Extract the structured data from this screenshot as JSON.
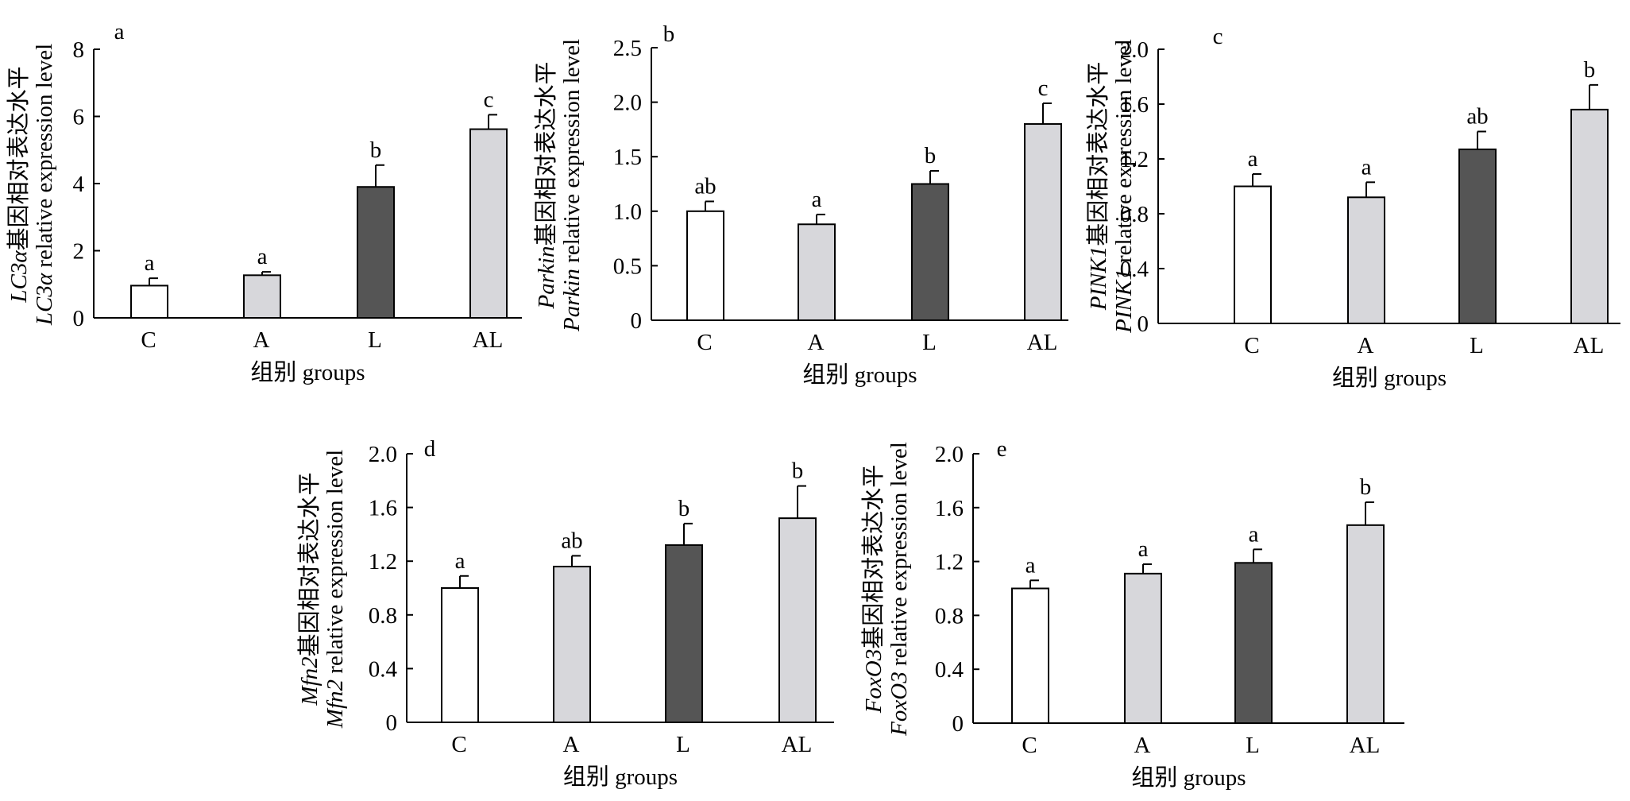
{
  "colors": {
    "C": "#ffffff",
    "A": "#d7d7db",
    "L": "#555555",
    "AL": "#d7d7db",
    "axis": "#000000"
  },
  "chart_data": [
    {
      "panel": "a",
      "type": "bar",
      "categories": [
        "C",
        "A",
        "L",
        "AL"
      ],
      "values": [
        0.96,
        1.27,
        3.9,
        5.62
      ],
      "errors": [
        0.22,
        0.1,
        0.65,
        0.43
      ],
      "significance": [
        "a",
        "a",
        "b",
        "c"
      ],
      "ylim": [
        0,
        8
      ],
      "yticks": [
        "0",
        "2",
        "4",
        "6",
        "8"
      ],
      "xlabel": "组别 groups",
      "ylabel_gene": "LC3α",
      "ylabel_line1_suffix": "基因相对表达水平",
      "ylabel_line2_suffix": " relative expression level"
    },
    {
      "panel": "b",
      "type": "bar",
      "categories": [
        "C",
        "A",
        "L",
        "AL"
      ],
      "values": [
        1.0,
        0.88,
        1.25,
        1.8
      ],
      "errors": [
        0.09,
        0.09,
        0.12,
        0.19
      ],
      "significance": [
        "ab",
        "a",
        "b",
        "c"
      ],
      "ylim": [
        0,
        2.5
      ],
      "yticks": [
        "0",
        "0.5",
        "1.0",
        "1.5",
        "2.0",
        "2.5"
      ],
      "xlabel": "组别 groups",
      "ylabel_gene": "Parkin",
      "ylabel_line1_suffix": "基因相对表达水平",
      "ylabel_line2_suffix": " relative expression level"
    },
    {
      "panel": "c",
      "type": "bar",
      "categories": [
        "C",
        "A",
        "L",
        "AL"
      ],
      "values": [
        1.0,
        0.92,
        1.27,
        1.56
      ],
      "errors": [
        0.09,
        0.11,
        0.13,
        0.18
      ],
      "significance": [
        "a",
        "a",
        "ab",
        "b"
      ],
      "ylim": [
        0,
        2.0
      ],
      "yticks": [
        "0",
        "0.4",
        "0.8",
        "1.2",
        "1.6",
        "2.0"
      ],
      "xlabel": "组别 groups",
      "ylabel_gene": "PINK1",
      "ylabel_line1_suffix": "基因相对表达水平",
      "ylabel_line2_suffix": " relative expression level"
    },
    {
      "panel": "d",
      "type": "bar",
      "categories": [
        "C",
        "A",
        "L",
        "AL"
      ],
      "values": [
        1.0,
        1.16,
        1.32,
        1.52
      ],
      "errors": [
        0.09,
        0.08,
        0.16,
        0.24
      ],
      "significance": [
        "a",
        "ab",
        "b",
        "b"
      ],
      "ylim": [
        0,
        2.0
      ],
      "yticks": [
        "0",
        "0.4",
        "0.8",
        "1.2",
        "1.6",
        "2.0"
      ],
      "xlabel": "组别 groups",
      "ylabel_gene": "Mfn2",
      "ylabel_line1_suffix": "基因相对表达水平",
      "ylabel_line2_suffix": " relative expression level"
    },
    {
      "panel": "e",
      "type": "bar",
      "categories": [
        "C",
        "A",
        "L",
        "AL"
      ],
      "values": [
        1.0,
        1.11,
        1.19,
        1.47
      ],
      "errors": [
        0.06,
        0.07,
        0.1,
        0.17
      ],
      "significance": [
        "a",
        "a",
        "a",
        "b"
      ],
      "ylim": [
        0,
        2.0
      ],
      "yticks": [
        "0",
        "0.4",
        "0.8",
        "1.2",
        "1.6",
        "2.0"
      ],
      "xlabel": "组别 groups",
      "ylabel_gene": "FoxO3",
      "ylabel_line1_suffix": "基因相对表达水平",
      "ylabel_line2_suffix": " relative expression level"
    }
  ]
}
